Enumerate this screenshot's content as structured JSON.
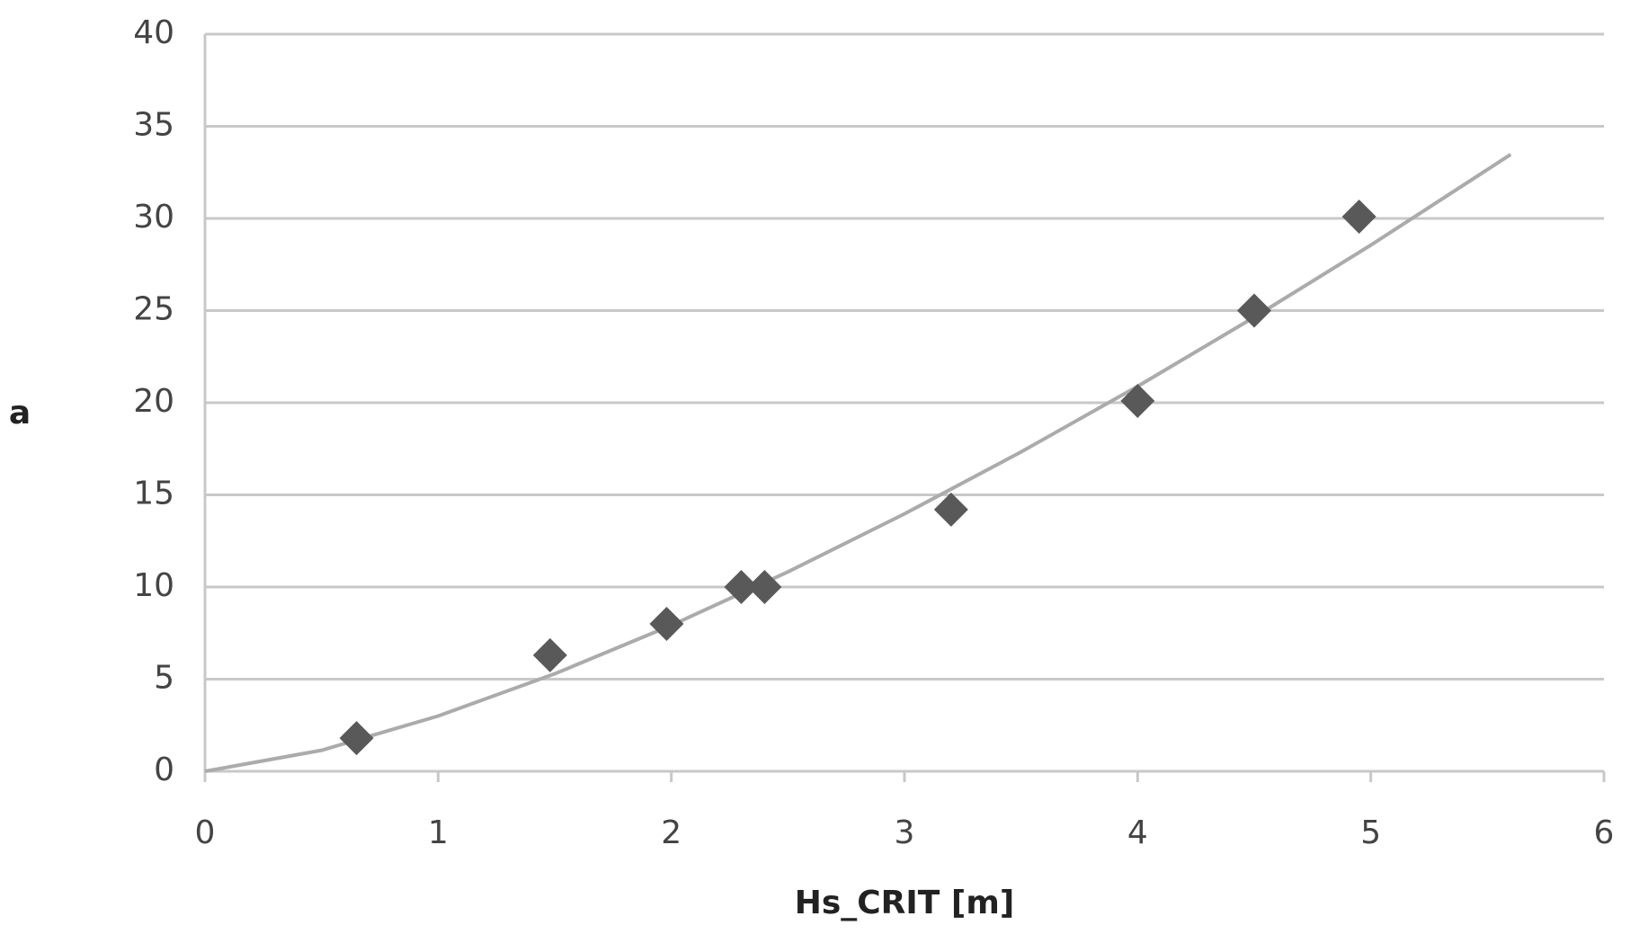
{
  "chart_data": {
    "type": "scatter",
    "xlabel": "Hs_CRIT [m]",
    "ylabel": "a",
    "xlim": [
      0,
      6
    ],
    "xticks": [
      0,
      1,
      2,
      3,
      4,
      5,
      6
    ],
    "ylim": [
      0,
      40
    ],
    "yticks": [
      0,
      5,
      10,
      15,
      20,
      25,
      30,
      35,
      40
    ],
    "grid": true,
    "series": [
      {
        "style": "marker",
        "color": "#595959",
        "x": [
          0.65,
          1.48,
          1.98,
          2.3,
          2.4,
          3.2,
          4.0,
          4.5,
          4.95
        ],
        "values": [
          1.8,
          6.3,
          8,
          10,
          10,
          14.2,
          20.1,
          25,
          30.1
        ]
      },
      {
        "style": "line",
        "color": "#ababab",
        "x": [
          0,
          0.5,
          1,
          1.5,
          2,
          2.5,
          3,
          3.5,
          4,
          4.5,
          5,
          5.6
        ],
        "values": [
          0,
          1.14,
          3,
          5.29,
          7.92,
          10.82,
          13.97,
          17.33,
          20.89,
          24.64,
          28.55,
          33.47
        ]
      }
    ]
  }
}
